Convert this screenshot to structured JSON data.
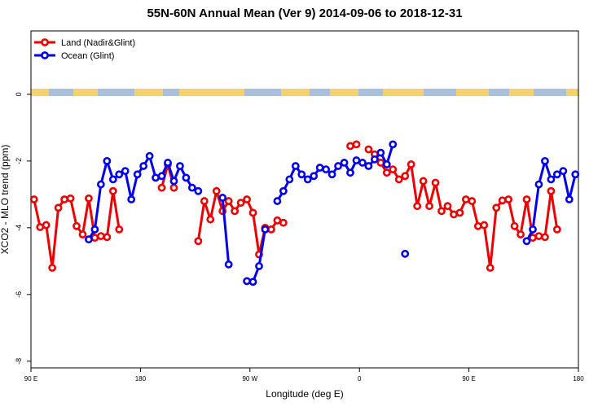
{
  "chart_data": {
    "type": "line",
    "title": "55N-60N Annual Mean (Ver 9)   2014-09-06 to 2018-12-31",
    "x_label": "Longitude (deg E)",
    "y_label": "XCO2 - MLO trend (ppm)",
    "x": [
      92.5,
      97.5,
      102.5,
      107.5,
      112.5,
      117.5,
      122.5,
      127.5,
      132.5,
      137.5,
      142.5,
      147.5,
      152.5,
      157.5,
      162.5,
      167.5,
      172.5,
      177.5,
      182.5,
      187.5,
      192.5,
      197.5,
      202.5,
      207.5,
      212.5,
      217.5,
      222.5,
      227.5,
      232.5,
      237.5,
      242.5,
      247.5,
      252.5,
      257.5,
      262.5,
      267.5,
      272.5,
      277.5,
      282.5,
      287.5,
      292.5,
      297.5,
      302.5,
      307.5,
      312.5,
      317.5,
      322.5,
      327.5,
      332.5,
      337.5,
      342.5,
      347.5,
      352.5,
      357.5,
      362.5,
      367.5,
      372.5,
      377.5,
      382.5,
      387.5,
      392.5,
      397.5,
      402.5,
      407.5,
      412.5,
      417.5,
      422.5,
      427.5,
      432.5,
      437.5,
      442.5,
      447.5,
      452.5,
      457.5,
      462.5,
      467.5,
      472.5,
      477.5,
      482.5,
      487.5,
      492.5,
      497.5,
      502.5,
      507.5,
      512.5,
      517.5,
      522.5,
      527.5,
      532.5,
      537.5
    ],
    "series": [
      {
        "name": "Land (Nadir&Glint)",
        "color": "#ee0000",
        "values": [
          -3.15,
          -3.98,
          -3.92,
          -5.2,
          -3.4,
          -3.15,
          -3.12,
          -3.95,
          -4.2,
          -3.12,
          -4.3,
          -4.25,
          -4.28,
          -2.9,
          -4.05,
          null,
          null,
          null,
          null,
          null,
          null,
          -2.8,
          -2.1,
          -2.8,
          null,
          null,
          null,
          -4.4,
          -3.2,
          -3.75,
          -2.9,
          -3.5,
          -3.2,
          -3.5,
          -3.25,
          -3.15,
          -3.55,
          -4.8,
          -4.0,
          -4.05,
          -3.78,
          -3.85,
          null,
          null,
          null,
          null,
          null,
          null,
          null,
          null,
          null,
          null,
          -1.55,
          -1.5,
          null,
          -1.65,
          -1.8,
          -2.05,
          -2.35,
          -2.25,
          -2.55,
          -2.45,
          -2.1,
          -3.35,
          -2.6,
          -3.35,
          -2.65,
          -3.5,
          -3.35,
          -3.6,
          -3.55,
          -3.15,
          -3.2,
          -3.95,
          -3.92,
          -5.2,
          -3.4,
          -3.18,
          -3.15,
          -3.95,
          -4.2,
          -3.15,
          -4.3,
          -4.25,
          -4.28,
          -2.9,
          -4.05,
          null,
          null,
          null
        ]
      },
      {
        "name": "Ocean (Glint)",
        "color": "#0000ee",
        "values": [
          null,
          null,
          null,
          null,
          null,
          null,
          null,
          null,
          null,
          -4.35,
          -4.05,
          -2.7,
          -2.0,
          -2.55,
          -2.4,
          -2.3,
          -3.15,
          -2.4,
          -2.15,
          -1.85,
          -2.5,
          -2.45,
          -2.05,
          -2.6,
          -2.15,
          -2.5,
          -2.8,
          -2.9,
          null,
          null,
          null,
          -3.1,
          -5.1,
          null,
          null,
          -5.6,
          -5.62,
          -5.15,
          -4.05,
          null,
          -3.2,
          -2.9,
          -2.55,
          -2.15,
          -2.4,
          -2.55,
          -2.45,
          -2.2,
          -2.25,
          -2.4,
          -2.15,
          -2.05,
          -2.35,
          -1.98,
          -2.05,
          -2.15,
          -1.95,
          -1.75,
          -2.1,
          -1.5,
          null,
          -4.78,
          null,
          null,
          null,
          null,
          null,
          null,
          null,
          null,
          null,
          null,
          null,
          null,
          null,
          null,
          null,
          null,
          null,
          null,
          null,
          -4.4,
          -4.05,
          -2.7,
          -2.0,
          -2.55,
          -2.4,
          -2.3,
          -3.15,
          -2.4
        ]
      }
    ],
    "xlim": [
      90,
      540
    ],
    "xticks": [
      {
        "value": 90,
        "label": "90 E"
      },
      180,
      {
        "value": 270,
        "label": "90 W"
      },
      {
        "value": 360,
        "label": "0"
      },
      {
        "value": 450,
        "label": "90 E"
      },
      {
        "value": 540,
        "label": "180"
      }
    ],
    "ylim": [
      -8.2,
      1.9
    ],
    "yticks": [
      0,
      -2,
      -4,
      -6,
      -8
    ],
    "legend": "top-left"
  }
}
